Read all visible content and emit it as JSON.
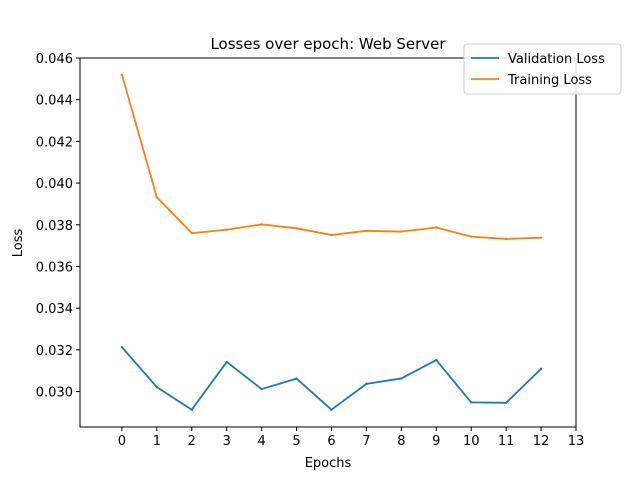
{
  "chart_data": {
    "type": "line",
    "title": "Losses over epoch: Web Server",
    "xlabel": "Epochs",
    "ylabel": "Loss",
    "x": [
      0,
      1,
      2,
      3,
      4,
      5,
      6,
      7,
      8,
      9,
      10,
      11,
      12
    ],
    "xlim": [
      -1.2,
      13
    ],
    "ylim": [
      0.0283,
      0.046
    ],
    "xticks": [
      "0",
      "1",
      "2",
      "3",
      "4",
      "5",
      "6",
      "7",
      "8",
      "9",
      "10",
      "11",
      "12",
      "13"
    ],
    "yticks": [
      "0.030",
      "0.032",
      "0.034",
      "0.036",
      "0.038",
      "0.040",
      "0.042",
      "0.044",
      "0.046"
    ],
    "grid": false,
    "legend_position": "top-right",
    "series": [
      {
        "name": "Validation Loss",
        "color": "#1f77b4",
        "values": [
          0.03213,
          0.03021,
          0.02913,
          0.03142,
          0.03012,
          0.03062,
          0.02913,
          0.03037,
          0.03063,
          0.03151,
          0.02948,
          0.02946,
          0.03109
        ]
      },
      {
        "name": "Training Loss",
        "color": "#ff7f0e",
        "values": [
          0.0452,
          0.03932,
          0.0376,
          0.03776,
          0.03802,
          0.03783,
          0.03751,
          0.03771,
          0.03767,
          0.03787,
          0.03743,
          0.03732,
          0.03738
        ]
      }
    ]
  }
}
